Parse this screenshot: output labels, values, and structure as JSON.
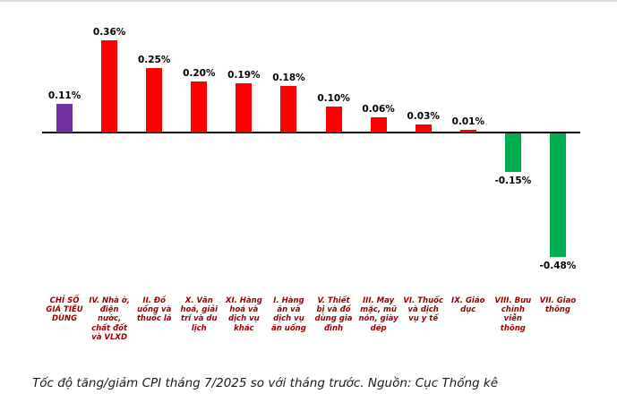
{
  "caption": "Tốc độ tăng/giảm CPI tháng 7/2025 so với tháng trước. Nguồn: Cục Thống kê",
  "chart_data": {
    "type": "bar",
    "title": "",
    "xlabel": "",
    "ylabel": "",
    "categories": [
      "CHỈ SỐ GIÁ TIÊU DÙNG",
      "IV. Nhà ở, điện nước, chất đốt và VLXD",
      "II. Đồ uống và thuốc lá",
      "X. Văn hoá, giải trí và du lịch",
      "XI. Hàng hoá và dịch vụ khác",
      "I. Hàng ăn và dịch vụ ăn uống",
      "V. Thiết bị và đồ dùng gia đình",
      "III. May mặc, mũ nón, giày dép",
      "VI. Thuốc và dịch vụ y tế",
      "IX. Giáo dục",
      "VIII. Bưu chính viễn thông",
      "VII. Giao thông"
    ],
    "values": [
      0.11,
      0.36,
      0.25,
      0.2,
      0.19,
      0.18,
      0.1,
      0.06,
      0.03,
      0.01,
      -0.15,
      -0.48
    ],
    "value_labels": [
      "0.11%",
      "0.36%",
      "0.25%",
      "0.20%",
      "0.19%",
      "0.18%",
      "0.10%",
      "0.06%",
      "0.03%",
      "0.01%",
      "-0.15%",
      "-0.48%"
    ],
    "bar_colors": [
      "#7030A0",
      "#FE0000",
      "#FE0000",
      "#FE0000",
      "#FE0000",
      "#FE0000",
      "#FE0000",
      "#FE0000",
      "#FE0000",
      "#FE0000",
      "#00B050",
      "#00B050"
    ],
    "ylim": [
      -0.55,
      0.42
    ],
    "baseline": 0,
    "grid": false,
    "legend": "none",
    "unit": "%"
  },
  "colors": {
    "cpi_total_bar": "#7030A0",
    "increase_bar": "#FE0000",
    "decrease_bar": "#00B050",
    "category_label": "#990000",
    "value_label": "#000000",
    "axis_line": "#000000"
  }
}
